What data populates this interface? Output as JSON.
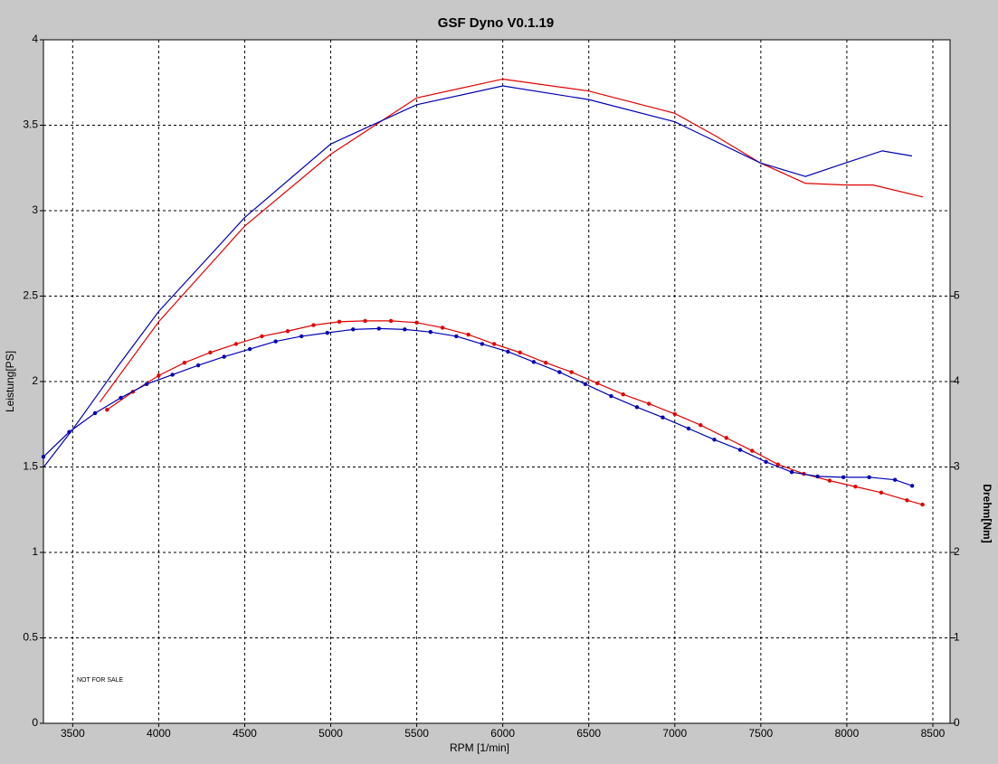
{
  "chart_data": {
    "type": "line",
    "title": "GSF Dyno V0.1.19",
    "x_label": "RPM [1/min]",
    "y_label": "Leistung[PS]",
    "y2_label": "Drehm[Nm]",
    "annotation": "NOT FOR SALE",
    "xlim": [
      3330,
      8600
    ],
    "xticks": [
      3500,
      4000,
      4500,
      5000,
      5500,
      6000,
      6500,
      7000,
      7500,
      8000,
      8500
    ],
    "ylim": [
      0,
      4
    ],
    "yticks": [
      0,
      0.5,
      1,
      1.5,
      2,
      2.5,
      3,
      3.5,
      4
    ],
    "y2lim": [
      0,
      8
    ],
    "y2ticks": [
      0,
      1,
      2,
      3,
      4,
      5
    ],
    "grid": true,
    "series": [
      {
        "color": "#e00000",
        "markers": false,
        "x": [
          3658,
          4000,
          4500,
          5000,
          5500,
          6000,
          6500,
          7000,
          7233,
          7496,
          7759,
          7995,
          8153,
          8442
        ],
        "values": [
          1.88,
          2.35,
          2.91,
          3.33,
          3.66,
          3.77,
          3.7,
          3.57,
          3.44,
          3.28,
          3.16,
          3.15,
          3.15,
          3.08
        ]
      },
      {
        "color": "#0000b4",
        "markers": false,
        "x": [
          3332,
          3500,
          3763,
          4000,
          4500,
          5000,
          5500,
          6000,
          6500,
          7000,
          7496,
          7759,
          7995,
          8206,
          8379
        ],
        "values": [
          1.5,
          1.72,
          2.09,
          2.41,
          2.96,
          3.39,
          3.62,
          3.73,
          3.65,
          3.52,
          3.28,
          3.2,
          3.28,
          3.35,
          3.32
        ]
      },
      {
        "color": "#e00000",
        "markers": true,
        "axis": "y2",
        "x": [
          3700,
          3850,
          4000,
          4150,
          4300,
          4450,
          4600,
          4750,
          4900,
          5050,
          5200,
          5350,
          5500,
          5650,
          5800,
          5950,
          6100,
          6250,
          6400,
          6550,
          6700,
          6850,
          7000,
          7150,
          7300,
          7450,
          7600,
          7750,
          7900,
          8050,
          8200,
          8350,
          8440
        ],
        "values": [
          3.67,
          3.88,
          4.07,
          4.22,
          4.34,
          4.44,
          4.53,
          4.59,
          4.66,
          4.7,
          4.71,
          4.71,
          4.69,
          4.63,
          4.55,
          4.44,
          4.34,
          4.22,
          4.11,
          3.98,
          3.85,
          3.74,
          3.62,
          3.49,
          3.34,
          3.19,
          3.03,
          2.92,
          2.84,
          2.77,
          2.7,
          2.61,
          2.56
        ]
      },
      {
        "color": "#0000b4",
        "markers": true,
        "axis": "y2",
        "x": [
          3330,
          3480,
          3630,
          3780,
          3930,
          4080,
          4230,
          4380,
          4530,
          4680,
          4830,
          4980,
          5130,
          5280,
          5430,
          5580,
          5730,
          5880,
          6030,
          6180,
          6330,
          6480,
          6630,
          6780,
          6930,
          7080,
          7230,
          7380,
          7530,
          7680,
          7830,
          7980,
          8130,
          8280,
          8380
        ],
        "values": [
          3.12,
          3.41,
          3.63,
          3.81,
          3.97,
          4.08,
          4.19,
          4.29,
          4.38,
          4.47,
          4.53,
          4.57,
          4.61,
          4.62,
          4.61,
          4.58,
          4.53,
          4.44,
          4.35,
          4.23,
          4.11,
          3.97,
          3.83,
          3.7,
          3.58,
          3.45,
          3.32,
          3.2,
          3.06,
          2.94,
          2.89,
          2.88,
          2.88,
          2.85,
          2.78
        ]
      }
    ]
  }
}
